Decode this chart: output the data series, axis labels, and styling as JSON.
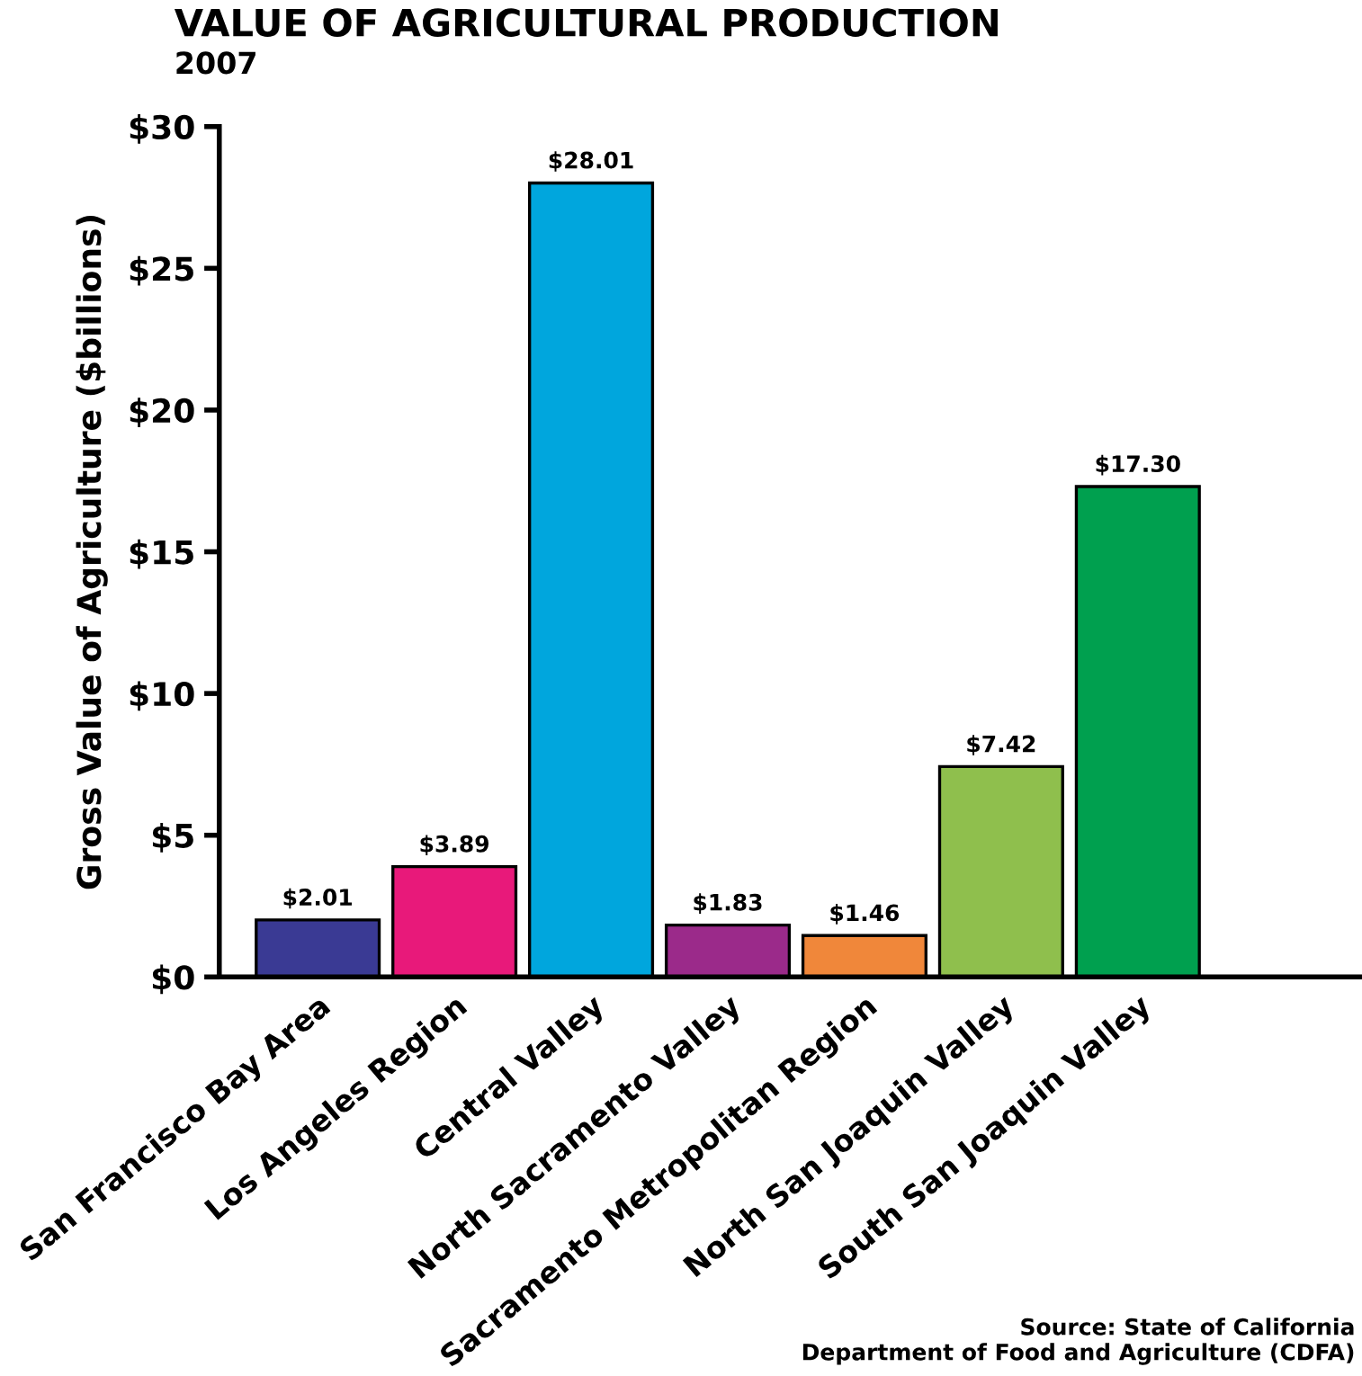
{
  "chart_data": {
    "type": "bar",
    "title": "VALUE OF AGRICULTURAL PRODUCTION",
    "subtitle": "2007",
    "ylabel": "Gross Value of Agriculture ($billions)",
    "categories": [
      "San Francisco Bay Area",
      "Los Angeles Region",
      "Central Valley",
      "North Sacramento Valley",
      "Sacramento Metropolitan Region",
      "North San Joaquin Valley",
      "South San Joaquin Valley"
    ],
    "values": [
      2.01,
      3.89,
      28.01,
      1.83,
      1.46,
      7.42,
      17.3
    ],
    "colors": [
      "#3a3a94",
      "#e8197a",
      "#00a6dd",
      "#9b2a8a",
      "#f0873a",
      "#8fbf4d",
      "#00a04f"
    ],
    "value_labels": [
      "$2.01",
      "$3.89",
      "$28.01",
      "$1.83",
      "$1.46",
      "$7.42",
      "$17.30"
    ],
    "ylim": [
      0,
      30
    ],
    "yticks": [
      {
        "value": 0,
        "label": "$0"
      },
      {
        "value": 5,
        "label": "$5"
      },
      {
        "value": 10,
        "label": "$10"
      },
      {
        "value": 15,
        "label": "$15"
      },
      {
        "value": 20,
        "label": "$20"
      },
      {
        "value": 25,
        "label": "$25"
      },
      {
        "value": 30,
        "label": "$30"
      }
    ],
    "grid": false,
    "legend": false,
    "annotations": [
      "Source: State of California\nDepartment of Food and Agriculture (CDFA)"
    ]
  }
}
